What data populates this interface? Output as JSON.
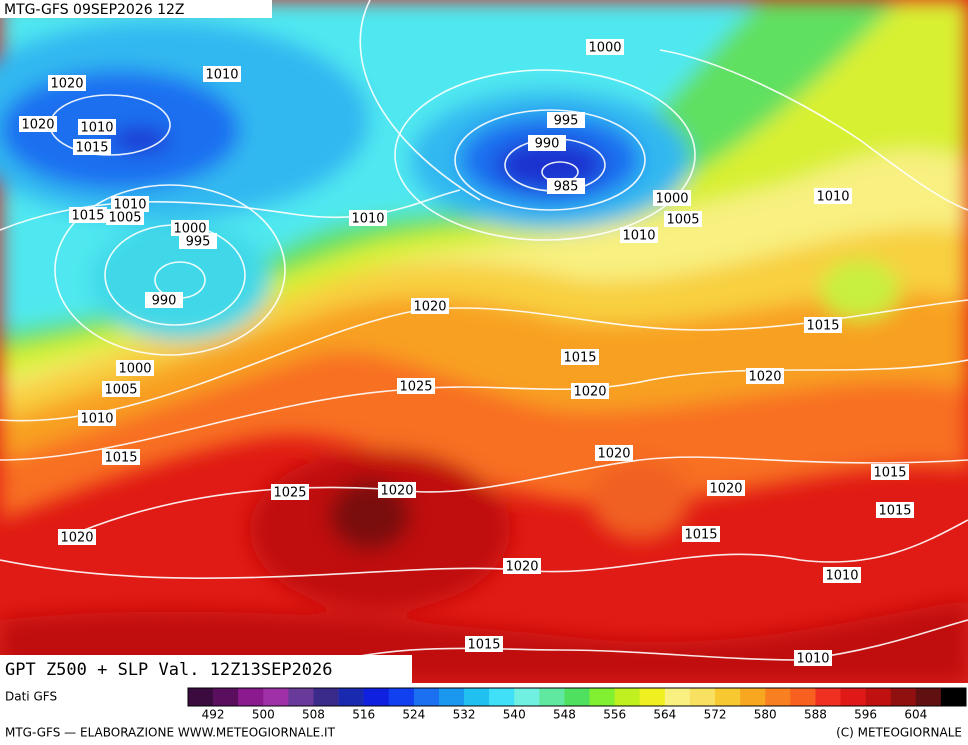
{
  "header": {
    "run": "MTG-GFS 09SEP2026 12Z"
  },
  "map": {
    "title": "GPT Z500 + SLP Val. 12Z13SEP2026",
    "isobar_labels": [
      1000,
      1010,
      1020,
      1010,
      1020,
      1015,
      995,
      990,
      985,
      1000,
      1005,
      1010,
      1010,
      1010,
      1015,
      1005,
      1000,
      995,
      1010,
      990,
      1020,
      1015,
      1015,
      1000,
      1005,
      1025,
      1020,
      1020,
      1010,
      1015,
      1020,
      1015,
      1025,
      1020,
      1020,
      1015,
      1015,
      1020,
      1020,
      1010,
      1015,
      1010
    ]
  },
  "colorbar": {
    "source": "Dati GFS",
    "colors": [
      "#3b0a3f",
      "#5a0e5e",
      "#8a1a8e",
      "#a030a8",
      "#6a3a9a",
      "#3a2a8a",
      "#1a2ab0",
      "#1020e0",
      "#1040f0",
      "#1a70f0",
      "#1a98f0",
      "#20c0f0",
      "#40e0f8",
      "#70f0e0",
      "#60e8a0",
      "#50e060",
      "#80f030",
      "#c0f020",
      "#f0f020",
      "#f8f080",
      "#f8e060",
      "#f8c830",
      "#f8a820",
      "#f88020",
      "#f86020",
      "#f03020",
      "#e01818",
      "#c01010",
      "#901010",
      "#601010",
      "#000000"
    ],
    "ticks": [
      492,
      500,
      508,
      516,
      524,
      532,
      540,
      548,
      556,
      564,
      572,
      580,
      588,
      596,
      604
    ]
  },
  "footer": {
    "left": "MTG-GFS — ELABORAZIONE WWW.METEOGIORNALE.IT",
    "right": "(C) METEOGIORNALE"
  }
}
